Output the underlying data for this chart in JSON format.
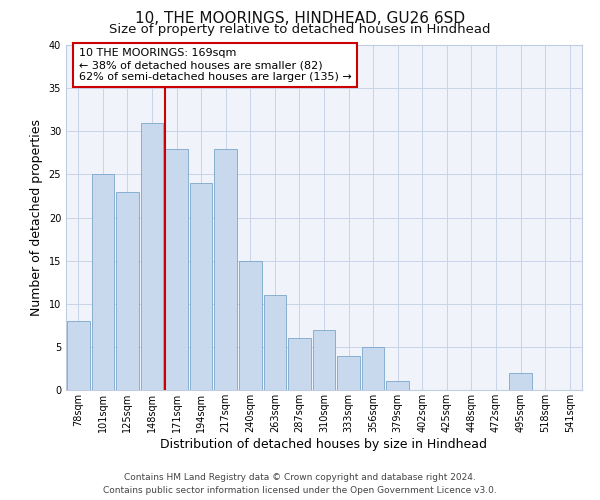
{
  "title": "10, THE MOORINGS, HINDHEAD, GU26 6SD",
  "subtitle": "Size of property relative to detached houses in Hindhead",
  "xlabel": "Distribution of detached houses by size in Hindhead",
  "ylabel": "Number of detached properties",
  "bar_labels": [
    "78sqm",
    "101sqm",
    "125sqm",
    "148sqm",
    "171sqm",
    "194sqm",
    "217sqm",
    "240sqm",
    "263sqm",
    "287sqm",
    "310sqm",
    "333sqm",
    "356sqm",
    "379sqm",
    "402sqm",
    "425sqm",
    "448sqm",
    "472sqm",
    "495sqm",
    "518sqm",
    "541sqm"
  ],
  "bar_heights": [
    8,
    25,
    23,
    31,
    28,
    24,
    28,
    15,
    11,
    6,
    7,
    4,
    5,
    1,
    0,
    0,
    0,
    0,
    2,
    0,
    0
  ],
  "bar_color": "#c9d9ed",
  "bar_edge_color": "#7aa6cc",
  "vline_x": 4,
  "vline_color": "#cc0000",
  "annotation_text": "10 THE MOORINGS: 169sqm\n← 38% of detached houses are smaller (82)\n62% of semi-detached houses are larger (135) →",
  "annotation_box_color": "#ffffff",
  "annotation_box_edge": "#cc0000",
  "ylim": [
    0,
    40
  ],
  "yticks": [
    0,
    5,
    10,
    15,
    20,
    25,
    30,
    35,
    40
  ],
  "footer_line1": "Contains HM Land Registry data © Crown copyright and database right 2024.",
  "footer_line2": "Contains public sector information licensed under the Open Government Licence v3.0.",
  "title_fontsize": 11,
  "subtitle_fontsize": 9.5,
  "tick_fontsize": 7,
  "ylabel_fontsize": 9,
  "xlabel_fontsize": 9,
  "annotation_fontsize": 8,
  "footer_fontsize": 6.5
}
